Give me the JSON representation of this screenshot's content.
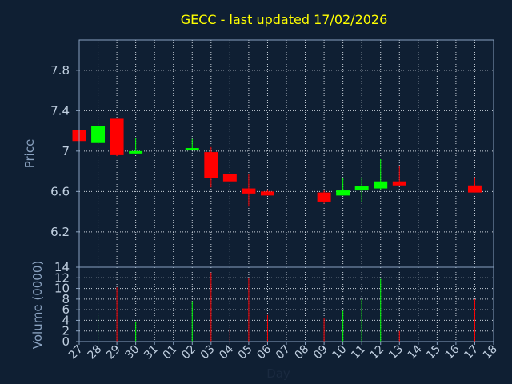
{
  "chart_data": [
    {
      "type": "candlestick",
      "title": "GECC - last updated 17/02/2026",
      "ylabel": "Price",
      "ylim": [
        5.85,
        8.1
      ],
      "yticks": [
        "6.2",
        "6.6",
        "7",
        "7.4",
        "7.8"
      ],
      "ytick_values": [
        6.2,
        6.6,
        7.0,
        7.4,
        7.8
      ],
      "grid": true,
      "colors": {
        "up": "#00ff00",
        "down": "#ff0000",
        "wick": "#ff0000"
      },
      "candles": [
        {
          "day": "27",
          "open": 7.21,
          "high": 7.21,
          "low": 7.1,
          "close": 7.1
        },
        {
          "day": "28",
          "open": 7.08,
          "high": 7.3,
          "low": 7.07,
          "close": 7.25
        },
        {
          "day": "29",
          "open": 7.32,
          "high": 7.32,
          "low": 6.95,
          "close": 6.96
        },
        {
          "day": "30",
          "open": 6.98,
          "high": 7.13,
          "low": 6.97,
          "close": 7.0
        },
        {
          "day": "02",
          "open": 7.01,
          "high": 7.12,
          "low": 7.01,
          "close": 7.03
        },
        {
          "day": "03",
          "open": 6.99,
          "high": 7.04,
          "low": 6.64,
          "close": 6.73
        },
        {
          "day": "04",
          "open": 6.77,
          "high": 6.77,
          "low": 6.7,
          "close": 6.7
        },
        {
          "day": "05",
          "open": 6.63,
          "high": 6.77,
          "low": 6.45,
          "close": 6.58
        },
        {
          "day": "06",
          "open": 6.6,
          "high": 6.62,
          "low": 6.56,
          "close": 6.56
        },
        {
          "day": "09",
          "open": 6.59,
          "high": 6.61,
          "low": 6.48,
          "close": 6.5
        },
        {
          "day": "10",
          "open": 6.56,
          "high": 6.73,
          "low": 6.56,
          "close": 6.61
        },
        {
          "day": "11",
          "open": 6.61,
          "high": 6.74,
          "low": 6.5,
          "close": 6.65
        },
        {
          "day": "12",
          "open": 6.63,
          "high": 6.92,
          "low": 6.62,
          "close": 6.7
        },
        {
          "day": "13",
          "open": 6.7,
          "high": 6.85,
          "low": 6.66,
          "close": 6.66
        },
        {
          "day": "17",
          "open": 6.66,
          "high": 6.74,
          "low": 6.59,
          "close": 6.59
        }
      ]
    },
    {
      "type": "bar",
      "ylabel": "Volume (0000)",
      "xlabel": "Day",
      "ylim": [
        0,
        14
      ],
      "yticks": [
        "0",
        "2",
        "4",
        "6",
        "8",
        "10",
        "12",
        "14"
      ],
      "ytick_values": [
        0,
        2,
        4,
        6,
        8,
        10,
        12,
        14
      ],
      "categories": [
        "27",
        "28",
        "29",
        "30",
        "31",
        "01",
        "02",
        "03",
        "04",
        "05",
        "06",
        "07",
        "08",
        "09",
        "10",
        "11",
        "12",
        "13",
        "14",
        "15",
        "16",
        "17",
        "18"
      ],
      "bars": [
        {
          "day": "28",
          "value": 5.0,
          "color": "#00ff00"
        },
        {
          "day": "29",
          "value": 10.2,
          "color": "#ff0000"
        },
        {
          "day": "30",
          "value": 3.8,
          "color": "#00ff00"
        },
        {
          "day": "02",
          "value": 7.6,
          "color": "#00ff00"
        },
        {
          "day": "03",
          "value": 13.0,
          "color": "#ff0000"
        },
        {
          "day": "04",
          "value": 2.4,
          "color": "#ff0000"
        },
        {
          "day": "05",
          "value": 12.0,
          "color": "#ff0000"
        },
        {
          "day": "06",
          "value": 5.0,
          "color": "#ff0000"
        },
        {
          "day": "09",
          "value": 4.4,
          "color": "#ff0000"
        },
        {
          "day": "10",
          "value": 5.8,
          "color": "#00ff00"
        },
        {
          "day": "11",
          "value": 8.0,
          "color": "#00ff00"
        },
        {
          "day": "12",
          "value": 11.8,
          "color": "#00ff00"
        },
        {
          "day": "13",
          "value": 2.0,
          "color": "#ff0000"
        },
        {
          "day": "17",
          "value": 8.0,
          "color": "#ff0000"
        }
      ]
    }
  ]
}
